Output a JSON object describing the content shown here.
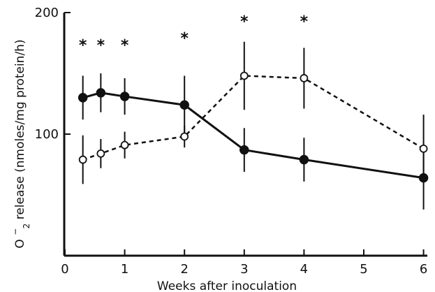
{
  "chart_data": {
    "type": "line",
    "xlabel": "Weeks after inoculation",
    "ylabel": "O",
    "ylabel_superscript": "−",
    "ylabel_subscript": "2",
    "ylabel_rest": " release (nmoles/mg protein/h)",
    "xlim": [
      0,
      6.2
    ],
    "ylim": [
      0,
      200
    ],
    "xticks": [
      0,
      1,
      2,
      3,
      4,
      5,
      6
    ],
    "xtick_labels": [
      "0",
      "1",
      "2",
      "3",
      "4",
      "5",
      "6"
    ],
    "yticks": [
      0,
      100,
      200
    ],
    "ytick_labels": [
      "",
      "100",
      "200"
    ],
    "grid": false,
    "series": [
      {
        "marker": "filled-circle",
        "line_style": "solid",
        "points": [
          {
            "x": 0.3,
            "y": 130,
            "err": 18
          },
          {
            "x": 0.6,
            "y": 134,
            "err": 16
          },
          {
            "x": 1.0,
            "y": 131,
            "err": 15
          },
          {
            "x": 2.0,
            "y": 124,
            "err": 24
          },
          {
            "x": 3.0,
            "y": 87,
            "err": 18
          },
          {
            "x": 4.0,
            "y": 79,
            "err": 18
          },
          {
            "x": 6.0,
            "y": 64,
            "err": 26
          }
        ]
      },
      {
        "marker": "open-circle",
        "line_style": "dashed",
        "points": [
          {
            "x": 0.3,
            "y": 79,
            "err": 20
          },
          {
            "x": 0.6,
            "y": 84,
            "err": 12
          },
          {
            "x": 1.0,
            "y": 91,
            "err": 11
          },
          {
            "x": 2.0,
            "y": 98,
            "err": 9
          },
          {
            "x": 3.0,
            "y": 148,
            "err": 28
          },
          {
            "x": 4.0,
            "y": 146,
            "err": 25
          },
          {
            "x": 6.0,
            "y": 88,
            "err": 28
          }
        ]
      }
    ],
    "annotations": [
      {
        "text": "*",
        "x": 0.3
      },
      {
        "text": "*",
        "x": 0.6
      },
      {
        "text": "*",
        "x": 1.0
      },
      {
        "text": "*",
        "x": 2.0
      },
      {
        "text": "*",
        "x": 3.0
      },
      {
        "text": "*",
        "x": 4.0
      }
    ]
  }
}
